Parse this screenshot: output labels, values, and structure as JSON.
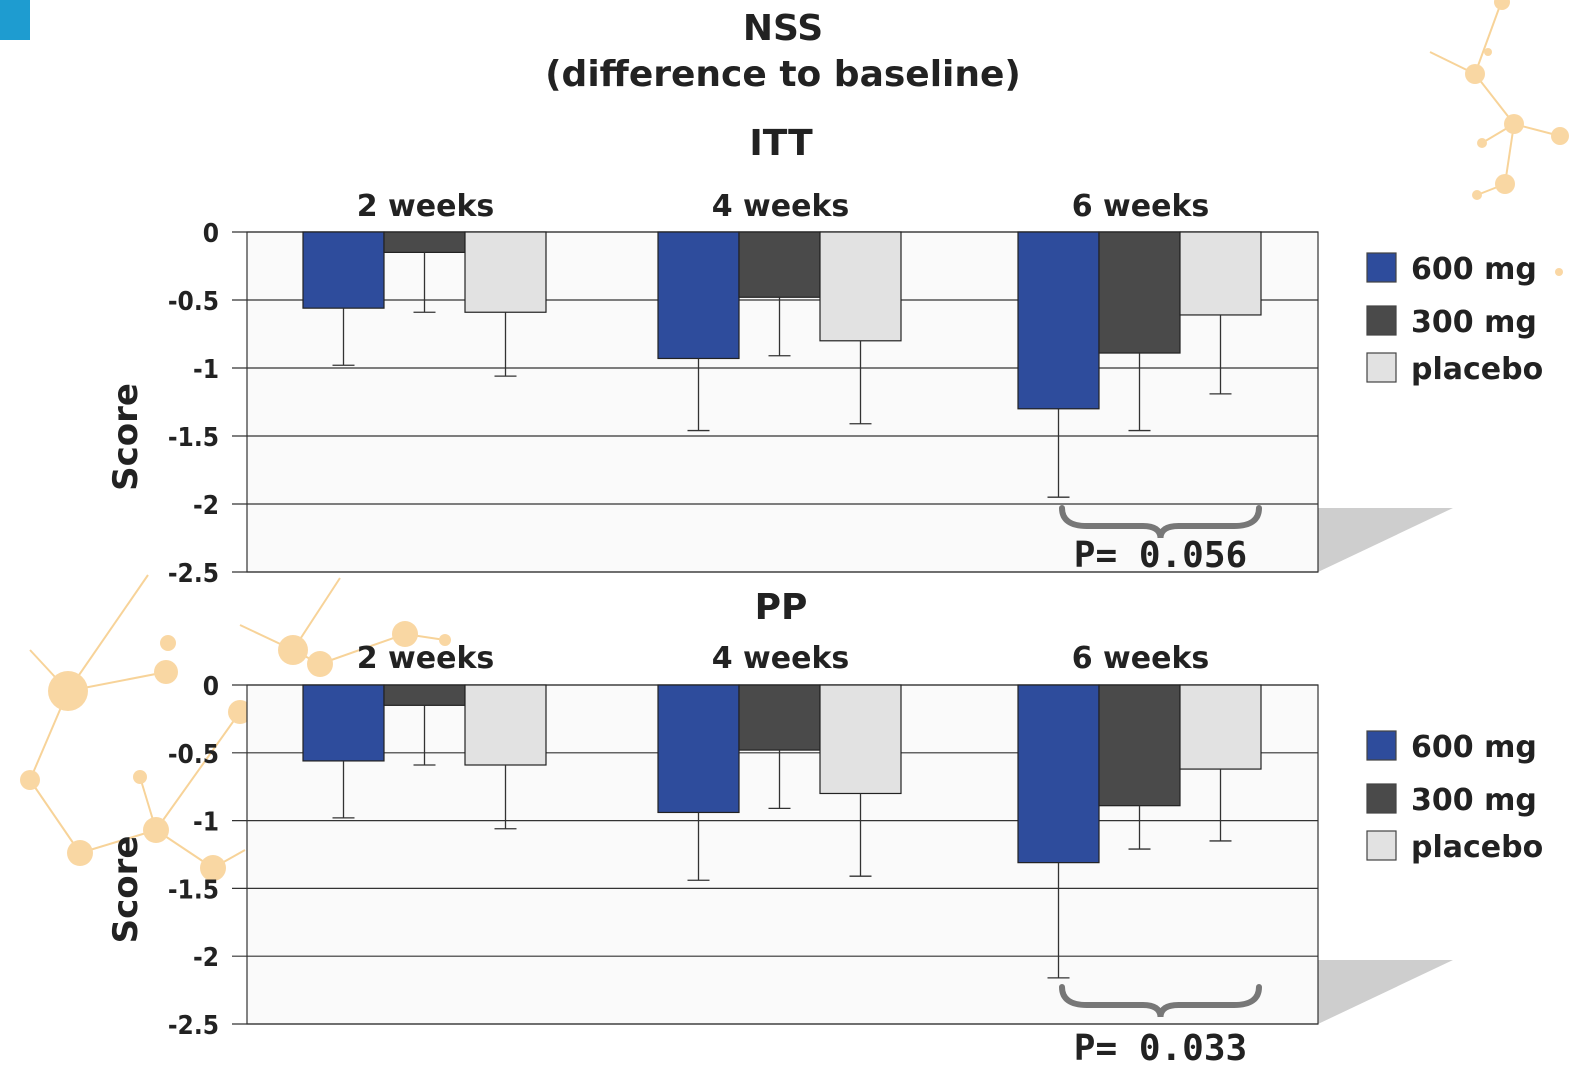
{
  "title_line1": "NSS",
  "title_line2": "(difference to baseline)",
  "chart_data": [
    {
      "type": "bar",
      "title": "ITT",
      "ylabel": "Score",
      "ylim": [
        -2.5,
        0
      ],
      "yticks": [
        "0",
        "-0.5",
        "-1",
        "-1.5",
        "-2",
        "-2.5"
      ],
      "categories": [
        "2 weeks",
        "4 weeks",
        "6 weeks"
      ],
      "series": [
        {
          "name": "600 mg",
          "color": "#2e4c9c",
          "values": [
            -0.56,
            -0.93,
            -1.3
          ],
          "errors": [
            0.42,
            0.53,
            0.65
          ]
        },
        {
          "name": "300 mg",
          "color": "#4a4a4a",
          "values": [
            -0.15,
            -0.48,
            -0.89
          ],
          "errors": [
            0.44,
            0.43,
            0.57
          ]
        },
        {
          "name": "placebo",
          "color": "#e2e2e2",
          "values": [
            -0.59,
            -0.8,
            -0.61
          ],
          "errors": [
            0.47,
            0.61,
            0.58
          ]
        }
      ],
      "annotation": "P= 0.056",
      "grid": true,
      "legend": "right"
    },
    {
      "type": "bar",
      "title": "PP",
      "ylabel": "Score",
      "ylim": [
        -2.5,
        0
      ],
      "yticks": [
        "0",
        "-0.5",
        "-1",
        "-1.5",
        "-2",
        "-2.5"
      ],
      "categories": [
        "2 weeks",
        "4 weeks",
        "6 weeks"
      ],
      "series": [
        {
          "name": "600 mg",
          "color": "#2e4c9c",
          "values": [
            -0.56,
            -0.94,
            -1.31
          ],
          "errors": [
            0.42,
            0.5,
            0.85
          ]
        },
        {
          "name": "300 mg",
          "color": "#4a4a4a",
          "values": [
            -0.15,
            -0.48,
            -0.89
          ],
          "errors": [
            0.44,
            0.43,
            0.32
          ]
        },
        {
          "name": "placebo",
          "color": "#e2e2e2",
          "values": [
            -0.59,
            -0.8,
            -0.62
          ],
          "errors": [
            0.47,
            0.61,
            0.53
          ]
        }
      ],
      "annotation": "P= 0.033",
      "grid": true,
      "legend": "right"
    }
  ]
}
